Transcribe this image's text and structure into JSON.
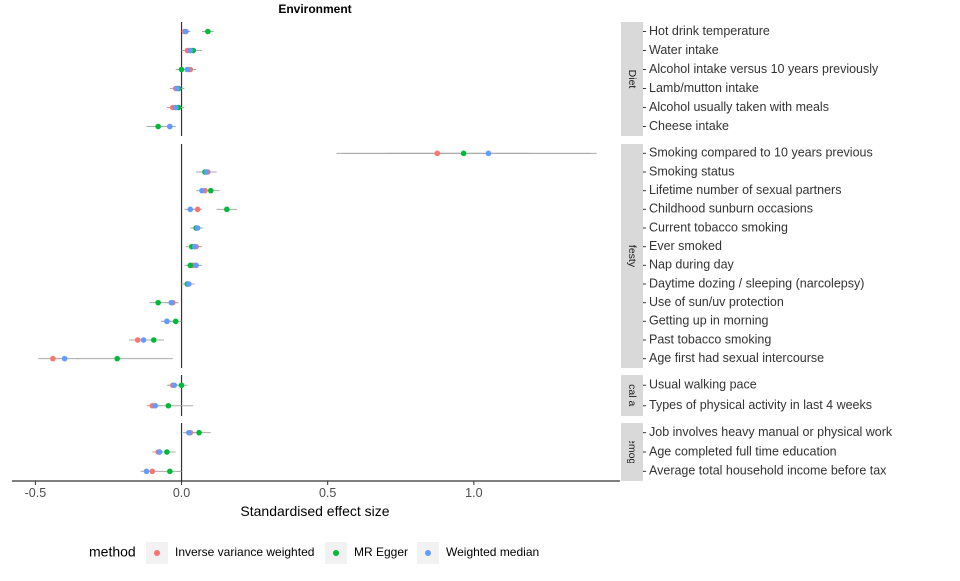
{
  "chart_data": {
    "type": "forest",
    "title": "Environment",
    "xlabel": "Standardised effect size",
    "xlim": [
      -0.58,
      1.5
    ],
    "xticks": [
      -0.5,
      0.0,
      0.5,
      1.0
    ],
    "xtick_labels": [
      "-0.5",
      "0.0",
      "0.5",
      "1.0"
    ],
    "grid": false,
    "legend": {
      "title": "method",
      "position": "bottom",
      "entries": [
        {
          "name": "Inverse variance weighted",
          "color": "#F8766D"
        },
        {
          "name": "MR Egger",
          "color": "#00BA38"
        },
        {
          "name": "Weighted median",
          "color": "#619CFF"
        }
      ]
    },
    "panels": [
      {
        "name": "Diet",
        "strip_label": "Diet",
        "rows": [
          {
            "label": "Hot drink temperature",
            "ivw": 0.01,
            "ivw_ci": [
              0.0,
              0.02
            ],
            "egger": 0.09,
            "egger_ci": [
              0.07,
              0.11
            ],
            "wm": 0.015,
            "wm_ci": [
              0.0,
              0.03
            ]
          },
          {
            "label": "Water intake",
            "ivw": 0.02,
            "ivw_ci": [
              0.0,
              0.04
            ],
            "egger": 0.04,
            "egger_ci": [
              0.01,
              0.07
            ],
            "wm": 0.03,
            "wm_ci": [
              0.01,
              0.05
            ]
          },
          {
            "label": "Alcohol intake versus 10 years previously",
            "ivw": 0.03,
            "ivw_ci": [
              0.01,
              0.05
            ],
            "egger": 0.0,
            "egger_ci": [
              -0.02,
              0.02
            ],
            "wm": 0.02,
            "wm_ci": [
              0.0,
              0.04
            ]
          },
          {
            "label": "Lamb/mutton intake",
            "ivw": -0.02,
            "ivw_ci": [
              -0.04,
              0.0
            ],
            "egger": -0.01,
            "egger_ci": [
              -0.03,
              0.01
            ],
            "wm": -0.015,
            "wm_ci": [
              -0.035,
              0.005
            ]
          },
          {
            "label": "Alcohol usually taken with meals",
            "ivw": -0.03,
            "ivw_ci": [
              -0.05,
              -0.01
            ],
            "egger": -0.01,
            "egger_ci": [
              -0.03,
              0.01
            ],
            "wm": -0.02,
            "wm_ci": [
              -0.04,
              0.0
            ]
          },
          {
            "label": "Cheese intake",
            "ivw": -0.04,
            "ivw_ci": [
              -0.06,
              -0.02
            ],
            "egger": -0.08,
            "egger_ci": [
              -0.12,
              -0.04
            ],
            "wm": -0.04,
            "wm_ci": [
              -0.06,
              -0.02
            ]
          }
        ]
      },
      {
        "name": "Lifestyle",
        "strip_label": "Lifestyle",
        "rows": [
          {
            "label": "Smoking compared to 10 years previous",
            "ivw": 0.875,
            "ivw_ci": [
              0.53,
              1.19
            ],
            "egger": 0.965,
            "egger_ci": [
              0.55,
              1.42
            ],
            "wm": 1.05,
            "wm_ci": [
              0.7,
              1.4
            ]
          },
          {
            "label": "Smoking status",
            "ivw": 0.09,
            "ivw_ci": [
              0.06,
              0.12
            ],
            "egger": 0.08,
            "egger_ci": [
              0.05,
              0.11
            ],
            "wm": 0.085,
            "wm_ci": [
              0.05,
              0.12
            ]
          },
          {
            "label": "Lifetime number of sexual partners",
            "ivw": 0.08,
            "ivw_ci": [
              0.06,
              0.1
            ],
            "egger": 0.1,
            "egger_ci": [
              0.07,
              0.13
            ],
            "wm": 0.07,
            "wm_ci": [
              0.05,
              0.09
            ]
          },
          {
            "label": "Childhood sunburn occasions",
            "ivw": 0.055,
            "ivw_ci": [
              0.04,
              0.07
            ],
            "egger": 0.155,
            "egger_ci": [
              0.12,
              0.19
            ],
            "wm": 0.03,
            "wm_ci": [
              0.01,
              0.05
            ]
          },
          {
            "label": "Current tobacco smoking",
            "ivw": 0.05,
            "ivw_ci": [
              0.03,
              0.07
            ],
            "egger": 0.05,
            "egger_ci": [
              0.03,
              0.07
            ],
            "wm": 0.055,
            "wm_ci": [
              0.035,
              0.075
            ]
          },
          {
            "label": "Ever smoked",
            "ivw": 0.05,
            "ivw_ci": [
              0.03,
              0.07
            ],
            "egger": 0.035,
            "egger_ci": [
              0.015,
              0.055
            ],
            "wm": 0.045,
            "wm_ci": [
              0.025,
              0.065
            ]
          },
          {
            "label": "Nap during day",
            "ivw": 0.04,
            "ivw_ci": [
              0.02,
              0.06
            ],
            "egger": 0.03,
            "egger_ci": [
              0.01,
              0.05
            ],
            "wm": 0.05,
            "wm_ci": [
              0.03,
              0.07
            ]
          },
          {
            "label": "Daytime dozing / sleeping (narcolepsy)",
            "ivw": 0.02,
            "ivw_ci": [
              0.0,
              0.04
            ],
            "egger": 0.02,
            "egger_ci": [
              0.0,
              0.04
            ],
            "wm": 0.025,
            "wm_ci": [
              0.005,
              0.045
            ]
          },
          {
            "label": "Use of sun/uv protection",
            "ivw": -0.03,
            "ivw_ci": [
              -0.05,
              -0.01
            ],
            "egger": -0.08,
            "egger_ci": [
              -0.11,
              -0.05
            ],
            "wm": -0.035,
            "wm_ci": [
              -0.055,
              -0.015
            ]
          },
          {
            "label": "Getting up in morning",
            "ivw": -0.05,
            "ivw_ci": [
              -0.07,
              -0.03
            ],
            "egger": -0.02,
            "egger_ci": [
              -0.04,
              0.0
            ],
            "wm": -0.05,
            "wm_ci": [
              -0.07,
              -0.03
            ]
          },
          {
            "label": "Past tobacco smoking",
            "ivw": -0.15,
            "ivw_ci": [
              -0.18,
              -0.12
            ],
            "egger": -0.095,
            "egger_ci": [
              -0.13,
              -0.06
            ],
            "wm": -0.13,
            "wm_ci": [
              -0.16,
              -0.1
            ]
          },
          {
            "label": "Age first had sexual intercourse",
            "ivw": -0.44,
            "ivw_ci": [
              -0.49,
              -0.39
            ],
            "egger": -0.22,
            "egger_ci": [
              -0.36,
              -0.03
            ],
            "wm": -0.4,
            "wm_ci": [
              -0.45,
              -0.35
            ]
          }
        ]
      },
      {
        "name": "Physical activity",
        "strip_label": "Physical activity",
        "rows": [
          {
            "label": "Usual walking pace",
            "ivw": -0.03,
            "ivw_ci": [
              -0.05,
              -0.01
            ],
            "egger": 0.0,
            "egger_ci": [
              -0.02,
              0.02
            ],
            "wm": -0.025,
            "wm_ci": [
              -0.045,
              -0.005
            ]
          },
          {
            "label": "Types of physical activity in last 4 weeks",
            "ivw": -0.1,
            "ivw_ci": [
              -0.12,
              -0.08
            ],
            "egger": -0.045,
            "egger_ci": [
              -0.1,
              0.04
            ],
            "wm": -0.09,
            "wm_ci": [
              -0.11,
              -0.07
            ]
          }
        ]
      },
      {
        "name": "Sociodemographics",
        "strip_label": "Sociodemographics",
        "rows": [
          {
            "label": "Job involves heavy manual or physical work",
            "ivw": 0.03,
            "ivw_ci": [
              0.01,
              0.05
            ],
            "egger": 0.06,
            "egger_ci": [
              0.03,
              0.1
            ],
            "wm": 0.025,
            "wm_ci": [
              0.005,
              0.045
            ]
          },
          {
            "label": "Age completed full time education",
            "ivw": -0.08,
            "ivw_ci": [
              -0.1,
              -0.06
            ],
            "egger": -0.05,
            "egger_ci": [
              -0.08,
              -0.02
            ],
            "wm": -0.075,
            "wm_ci": [
              -0.095,
              -0.055
            ]
          },
          {
            "label": "Average total household income before tax",
            "ivw": -0.1,
            "ivw_ci": [
              -0.12,
              -0.08
            ],
            "egger": -0.04,
            "egger_ci": [
              -0.08,
              0.0
            ],
            "wm": -0.12,
            "wm_ci": [
              -0.14,
              -0.1
            ]
          }
        ]
      }
    ]
  }
}
